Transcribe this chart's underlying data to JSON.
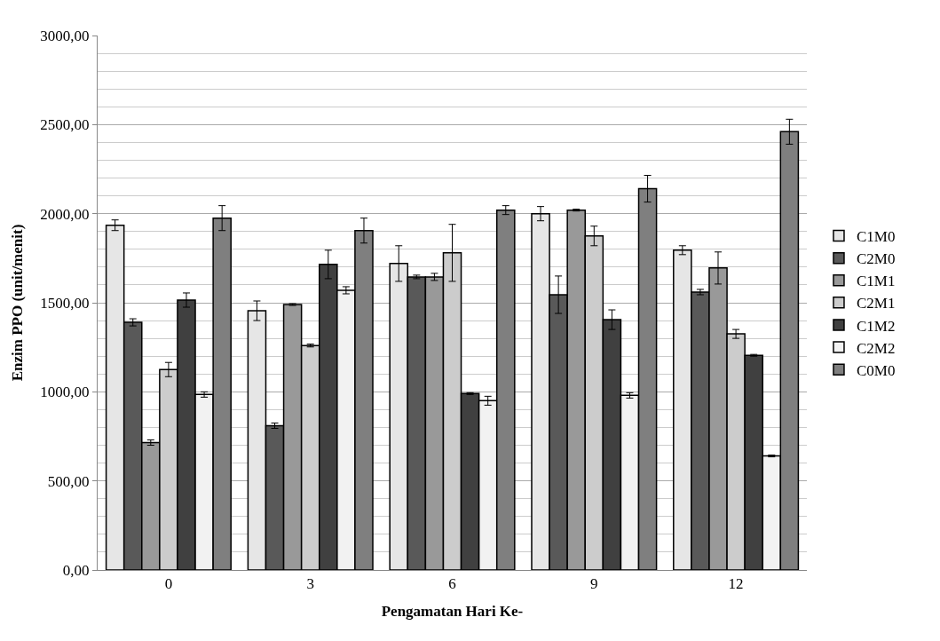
{
  "chart_data": {
    "type": "bar",
    "xlabel": "Pengamatan Hari Ke-",
    "ylabel": "Enzim PPO (unit/menit)",
    "categories": [
      "0",
      "3",
      "6",
      "9",
      "12"
    ],
    "ylim": [
      0,
      3000
    ],
    "yticks": [
      {
        "value": 0,
        "label": "0,00"
      },
      {
        "value": 500,
        "label": "500,00"
      },
      {
        "value": 1000,
        "label": "1000,00"
      },
      {
        "value": 1500,
        "label": "1500,00"
      },
      {
        "value": 2000,
        "label": "2000,00"
      },
      {
        "value": 2500,
        "label": "2500,00"
      },
      {
        "value": 3000,
        "label": "3000,00"
      }
    ],
    "grid": "y",
    "legend": "right",
    "series": [
      {
        "name": "C1M0",
        "color": "#e6e6e6",
        "values": [
          1935,
          1455,
          1720,
          2000,
          1795
        ],
        "errors": [
          30,
          55,
          100,
          40,
          25
        ]
      },
      {
        "name": "C2M0",
        "color": "#595959",
        "values": [
          1390,
          810,
          1645,
          1545,
          1560
        ],
        "errors": [
          20,
          15,
          10,
          105,
          15
        ]
      },
      {
        "name": "C1M1",
        "color": "#999999",
        "values": [
          715,
          1490,
          1645,
          2020,
          1695
        ],
        "errors": [
          15,
          5,
          20,
          5,
          90
        ]
      },
      {
        "name": "C2M1",
        "color": "#cccccc",
        "values": [
          1125,
          1260,
          1780,
          1875,
          1325
        ],
        "errors": [
          40,
          8,
          160,
          55,
          25
        ]
      },
      {
        "name": "C1M2",
        "color": "#404040",
        "values": [
          1515,
          1715,
          990,
          1405,
          1205
        ],
        "errors": [
          40,
          80,
          5,
          55,
          5
        ]
      },
      {
        "name": "C2M2",
        "color": "#f2f2f2",
        "values": [
          985,
          1570,
          950,
          980,
          640
        ],
        "errors": [
          15,
          20,
          25,
          15,
          5
        ]
      },
      {
        "name": "C0M0",
        "color": "#7f7f7f",
        "values": [
          1975,
          1905,
          2020,
          2140,
          2460
        ],
        "errors": [
          70,
          70,
          25,
          75,
          70
        ]
      }
    ]
  }
}
